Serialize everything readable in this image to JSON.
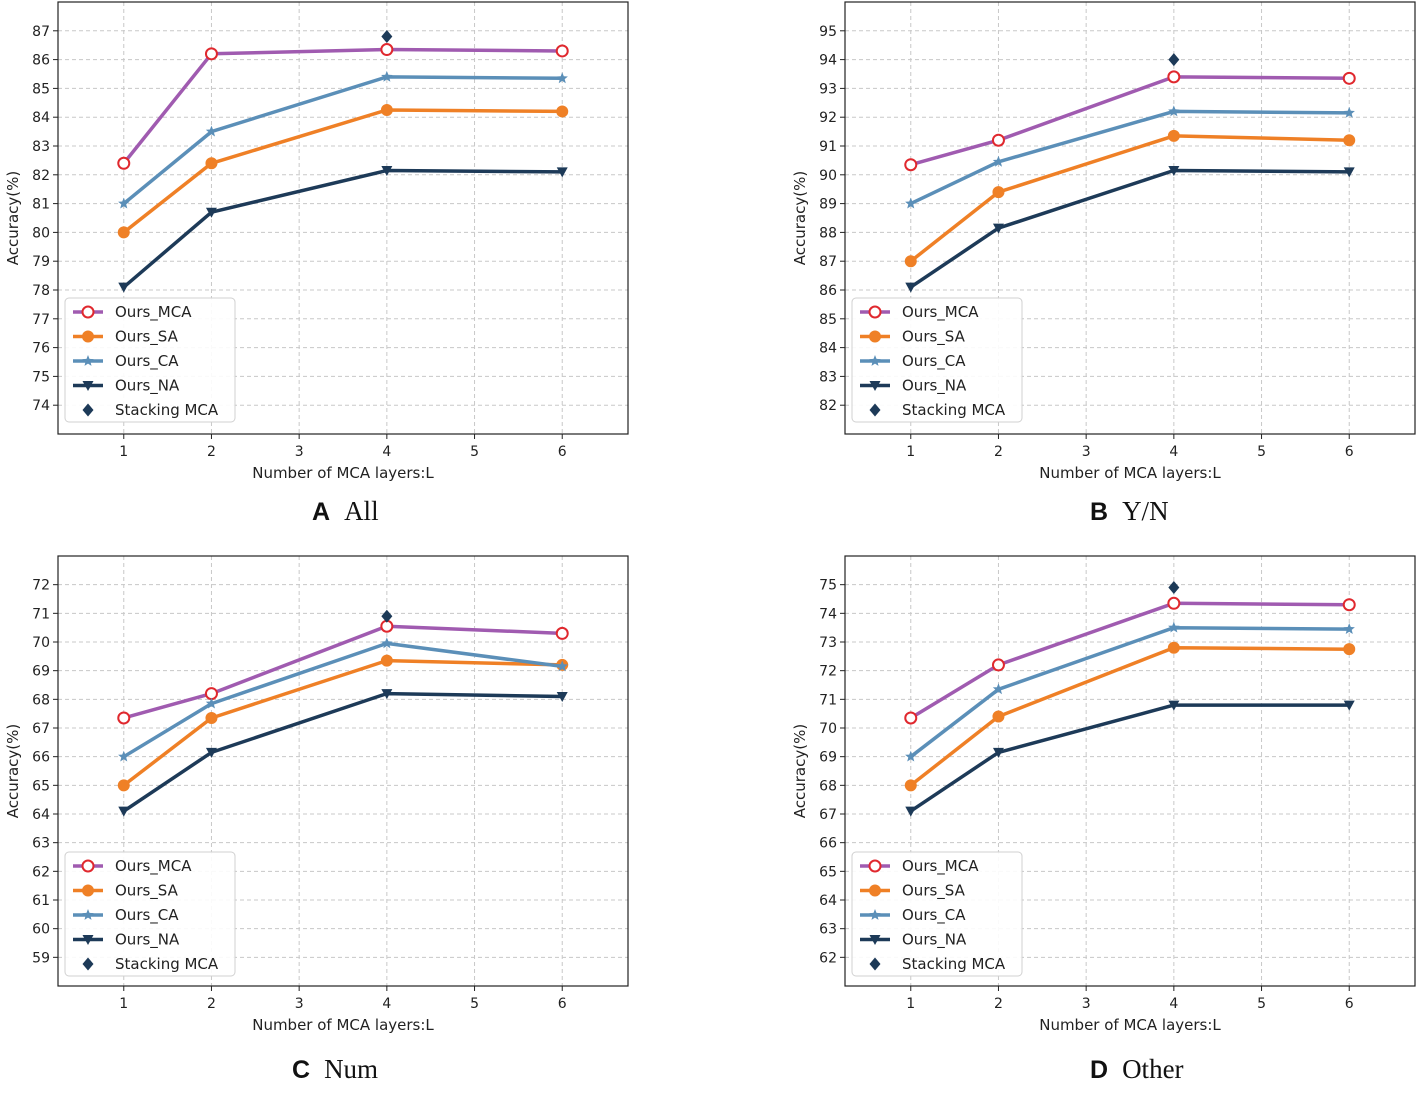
{
  "figure": {
    "legend_labels": [
      "Ours_MCA",
      "Ours_SA",
      "Ours_CA",
      "Ours_NA",
      "Stacking MCA"
    ],
    "colors": {
      "Ours_MCA": "#a05bb0",
      "Ours_SA": "#ef8026",
      "Ours_CA": "#5b8fb8",
      "Ours_NA": "#1d3a58",
      "Stacking MCA": "#1d3a58"
    }
  },
  "chart_data": [
    {
      "id": "A",
      "type": "line",
      "caption_letter": "A",
      "caption_text": "All",
      "xlabel": "Number of MCA layers:L",
      "ylabel": "Accuracy(%)",
      "xlim": [
        0.25,
        6.75
      ],
      "ylim": [
        73,
        88
      ],
      "xticks": [
        1,
        2,
        3,
        4,
        5,
        6
      ],
      "yticks": [
        74,
        75,
        76,
        77,
        78,
        79,
        80,
        81,
        82,
        83,
        84,
        85,
        86,
        87
      ],
      "x": [
        1,
        2,
        4,
        6
      ],
      "series": [
        {
          "name": "Ours_MCA",
          "values": [
            82.4,
            86.2,
            86.35,
            86.3
          ]
        },
        {
          "name": "Ours_SA",
          "values": [
            80.0,
            82.4,
            84.25,
            84.2
          ]
        },
        {
          "name": "Ours_CA",
          "values": [
            81.0,
            83.5,
            85.4,
            85.35
          ]
        },
        {
          "name": "Ours_NA",
          "values": [
            78.1,
            80.7,
            82.15,
            82.1
          ]
        }
      ],
      "stacking": {
        "name": "Stacking MCA",
        "x": 4,
        "y": 86.8
      },
      "legend_position": "lower-left"
    },
    {
      "id": "B",
      "type": "line",
      "caption_letter": "B",
      "caption_text": "Y/N",
      "xlabel": "Number of MCA layers:L",
      "ylabel": "Accuracy(%)",
      "xlim": [
        0.25,
        6.75
      ],
      "ylim": [
        81,
        96
      ],
      "xticks": [
        1,
        2,
        3,
        4,
        5,
        6
      ],
      "yticks": [
        82,
        83,
        84,
        85,
        86,
        87,
        88,
        89,
        90,
        91,
        92,
        93,
        94,
        95
      ],
      "x": [
        1,
        2,
        4,
        6
      ],
      "series": [
        {
          "name": "Ours_MCA",
          "values": [
            90.35,
            91.2,
            93.4,
            93.35
          ]
        },
        {
          "name": "Ours_SA",
          "values": [
            87.0,
            89.4,
            91.35,
            91.2
          ]
        },
        {
          "name": "Ours_CA",
          "values": [
            89.0,
            90.45,
            92.2,
            92.15
          ]
        },
        {
          "name": "Ours_NA",
          "values": [
            86.1,
            88.15,
            90.15,
            90.1
          ]
        }
      ],
      "stacking": {
        "name": "Stacking MCA",
        "x": 4,
        "y": 94.0
      },
      "legend_position": "lower-left"
    },
    {
      "id": "C",
      "type": "line",
      "caption_letter": "C",
      "caption_text": "Num",
      "xlabel": "Number of MCA layers:L",
      "ylabel": "Accuracy(%)",
      "xlim": [
        0.25,
        6.75
      ],
      "ylim": [
        58,
        73
      ],
      "xticks": [
        1,
        2,
        3,
        4,
        5,
        6
      ],
      "yticks": [
        59,
        60,
        61,
        62,
        63,
        64,
        65,
        66,
        67,
        68,
        69,
        70,
        71,
        72
      ],
      "x": [
        1,
        2,
        4,
        6
      ],
      "series": [
        {
          "name": "Ours_MCA",
          "values": [
            67.35,
            68.2,
            70.55,
            70.3
          ]
        },
        {
          "name": "Ours_SA",
          "values": [
            65.0,
            67.35,
            69.35,
            69.2
          ]
        },
        {
          "name": "Ours_CA",
          "values": [
            66.0,
            67.85,
            69.95,
            69.15
          ]
        },
        {
          "name": "Ours_NA",
          "values": [
            64.1,
            66.15,
            68.2,
            68.1
          ]
        }
      ],
      "stacking": {
        "name": "Stacking MCA",
        "x": 4,
        "y": 70.9
      },
      "legend_position": "lower-left"
    },
    {
      "id": "D",
      "type": "line",
      "caption_letter": "D",
      "caption_text": "Other",
      "xlabel": "Number of MCA layers:L",
      "ylabel": "Accuracy(%)",
      "xlim": [
        0.25,
        6.75
      ],
      "ylim": [
        61,
        76
      ],
      "xticks": [
        1,
        2,
        3,
        4,
        5,
        6
      ],
      "yticks": [
        62,
        63,
        64,
        65,
        66,
        67,
        68,
        69,
        70,
        71,
        72,
        73,
        74,
        75
      ],
      "x": [
        1,
        2,
        4,
        6
      ],
      "series": [
        {
          "name": "Ours_MCA",
          "values": [
            70.35,
            72.2,
            74.35,
            74.3
          ]
        },
        {
          "name": "Ours_SA",
          "values": [
            68.0,
            70.4,
            72.8,
            72.75
          ]
        },
        {
          "name": "Ours_CA",
          "values": [
            69.0,
            71.35,
            73.5,
            73.45
          ]
        },
        {
          "name": "Ours_NA",
          "values": [
            67.1,
            69.15,
            70.8,
            70.8
          ]
        }
      ],
      "stacking": {
        "name": "Stacking MCA",
        "x": 4,
        "y": 74.9
      },
      "legend_position": "lower-left"
    }
  ]
}
